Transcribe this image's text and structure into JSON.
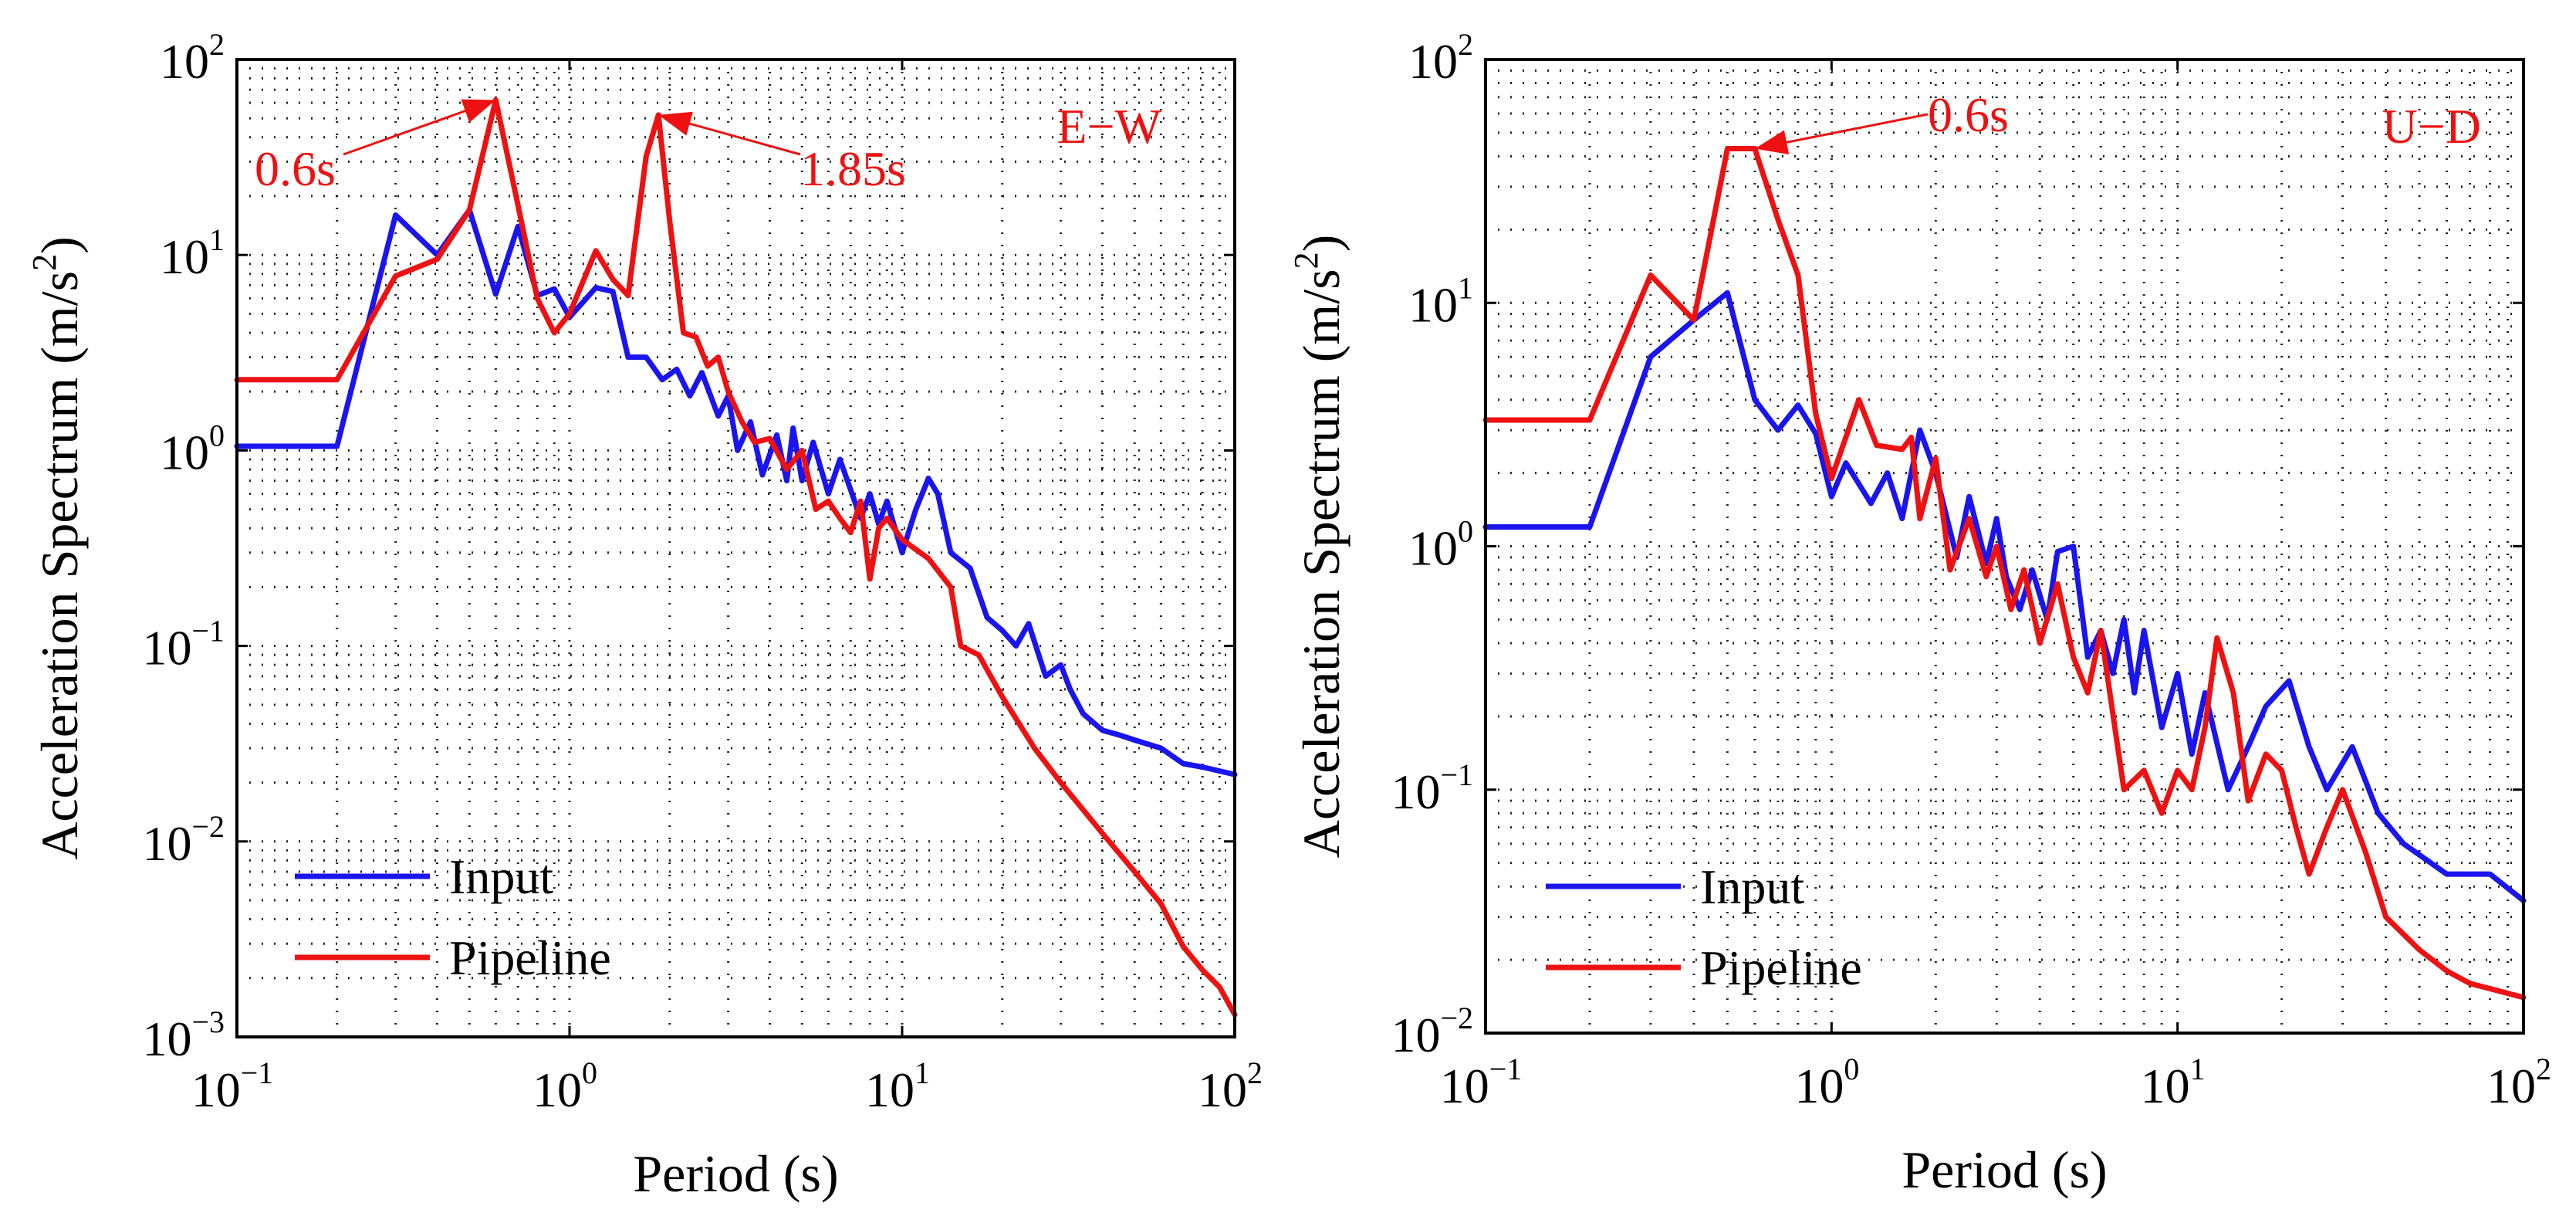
{
  "chart_data": [
    {
      "type": "line",
      "panel": "E-W",
      "xscale": "log",
      "yscale": "log",
      "xlabel": "Period (s)",
      "ylabel": "Acceleration Spectrum (m/s",
      "ylabel_sup": "2",
      "ylabel_close": ")",
      "xlim": [
        0.1,
        100
      ],
      "ylim": [
        0.001,
        100
      ],
      "x_tick_base": "10",
      "x_tick_exponents": [
        "−1",
        "0",
        "1",
        "2"
      ],
      "y_tick_base": "10",
      "y_tick_exponents": [
        "−3",
        "−2",
        "−1",
        "0",
        "1",
        "2"
      ],
      "grid": true,
      "panel_label": "E−W",
      "panel_label_color": "#ee1111",
      "legend_position": "bottom-left",
      "annotations": [
        {
          "text": "0.6s",
          "x": 0.6,
          "y": 62,
          "side": "left"
        },
        {
          "text": "1.85s",
          "x": 1.85,
          "y": 52,
          "side": "right"
        }
      ],
      "series": [
        {
          "name": "Input",
          "color": "#1a14ee",
          "points": [
            [
              0.1,
              1.05
            ],
            [
              0.2,
              1.05
            ],
            [
              0.3,
              16
            ],
            [
              0.4,
              10
            ],
            [
              0.5,
              17
            ],
            [
              0.6,
              6.3
            ],
            [
              0.7,
              14
            ],
            [
              0.8,
              6.2
            ],
            [
              0.9,
              6.7
            ],
            [
              1.0,
              4.8
            ],
            [
              1.2,
              6.8
            ],
            [
              1.35,
              6.5
            ],
            [
              1.5,
              3.0
            ],
            [
              1.7,
              3.0
            ],
            [
              1.9,
              2.3
            ],
            [
              2.1,
              2.6
            ],
            [
              2.3,
              1.9
            ],
            [
              2.5,
              2.5
            ],
            [
              2.8,
              1.5
            ],
            [
              3.0,
              1.9
            ],
            [
              3.2,
              1.0
            ],
            [
              3.5,
              1.4
            ],
            [
              3.8,
              0.75
            ],
            [
              4.2,
              1.2
            ],
            [
              4.5,
              0.7
            ],
            [
              4.7,
              1.3
            ],
            [
              5.0,
              0.7
            ],
            [
              5.4,
              1.1
            ],
            [
              6.0,
              0.6
            ],
            [
              6.5,
              0.9
            ],
            [
              7.5,
              0.45
            ],
            [
              8.0,
              0.6
            ],
            [
              8.5,
              0.42
            ],
            [
              9.0,
              0.55
            ],
            [
              10.0,
              0.3
            ],
            [
              11.0,
              0.5
            ],
            [
              12.0,
              0.72
            ],
            [
              12.8,
              0.6
            ],
            [
              14.0,
              0.3
            ],
            [
              16.0,
              0.25
            ],
            [
              18.0,
              0.14
            ],
            [
              20.0,
              0.12
            ],
            [
              22.0,
              0.1
            ],
            [
              24.0,
              0.13
            ],
            [
              27.0,
              0.07
            ],
            [
              30.0,
              0.08
            ],
            [
              32.0,
              0.06
            ],
            [
              35.0,
              0.045
            ],
            [
              40.0,
              0.037
            ],
            [
              45.0,
              0.035
            ],
            [
              50.0,
              0.033
            ],
            [
              60.0,
              0.03
            ],
            [
              70.0,
              0.025
            ],
            [
              80.0,
              0.024
            ],
            [
              100.0,
              0.022
            ]
          ]
        },
        {
          "name": "Pipeline",
          "color": "#ee1111",
          "points": [
            [
              0.1,
              2.3
            ],
            [
              0.2,
              2.3
            ],
            [
              0.3,
              7.8
            ],
            [
              0.4,
              9.5
            ],
            [
              0.5,
              17
            ],
            [
              0.6,
              62
            ],
            [
              0.7,
              18
            ],
            [
              0.8,
              6.0
            ],
            [
              0.9,
              4.0
            ],
            [
              1.0,
              5.0
            ],
            [
              1.2,
              10.5
            ],
            [
              1.35,
              7.5
            ],
            [
              1.5,
              6.2
            ],
            [
              1.7,
              32
            ],
            [
              1.85,
              52
            ],
            [
              2.0,
              15
            ],
            [
              2.2,
              4.0
            ],
            [
              2.4,
              3.8
            ],
            [
              2.6,
              2.7
            ],
            [
              2.8,
              3.0
            ],
            [
              3.0,
              2.0
            ],
            [
              3.3,
              1.4
            ],
            [
              3.6,
              1.1
            ],
            [
              4.0,
              1.15
            ],
            [
              4.5,
              0.8
            ],
            [
              5.0,
              1.0
            ],
            [
              5.5,
              0.5
            ],
            [
              6.0,
              0.55
            ],
            [
              6.5,
              0.45
            ],
            [
              7.0,
              0.38
            ],
            [
              7.5,
              0.55
            ],
            [
              8.0,
              0.22
            ],
            [
              8.5,
              0.4
            ],
            [
              9.0,
              0.45
            ],
            [
              10.0,
              0.35
            ],
            [
              12.0,
              0.28
            ],
            [
              14.0,
              0.2
            ],
            [
              15.0,
              0.1
            ],
            [
              17.0,
              0.09
            ],
            [
              20.0,
              0.055
            ],
            [
              25.0,
              0.03
            ],
            [
              30.0,
              0.02
            ],
            [
              40.0,
              0.011
            ],
            [
              50.0,
              0.007
            ],
            [
              60.0,
              0.0048
            ],
            [
              70.0,
              0.0029
            ],
            [
              80.0,
              0.0022
            ],
            [
              90.0,
              0.0018
            ],
            [
              100.0,
              0.0013
            ]
          ]
        }
      ]
    },
    {
      "type": "line",
      "panel": "U-D",
      "xscale": "log",
      "yscale": "log",
      "xlabel": "Period (s)",
      "ylabel": "Acceleration Spectrum (m/s",
      "ylabel_sup": "2",
      "ylabel_close": ")",
      "xlim": [
        0.1,
        100
      ],
      "ylim": [
        0.01,
        100
      ],
      "x_tick_base": "10",
      "x_tick_exponents": [
        "−1",
        "0",
        "1",
        "2"
      ],
      "y_tick_base": "10",
      "y_tick_exponents": [
        "−2",
        "−1",
        "0",
        "1",
        "2"
      ],
      "grid": true,
      "panel_label": "U−D",
      "panel_label_color": "#ee1111",
      "legend_position": "bottom-left",
      "annotations": [
        {
          "text": "0.6s",
          "x": 0.6,
          "y": 43,
          "side": "right"
        }
      ],
      "series": [
        {
          "name": "Input",
          "color": "#1a14ee",
          "points": [
            [
              0.1,
              1.2
            ],
            [
              0.2,
              1.2
            ],
            [
              0.3,
              6.0
            ],
            [
              0.4,
              8.5
            ],
            [
              0.5,
              11
            ],
            [
              0.6,
              4.0
            ],
            [
              0.7,
              3.0
            ],
            [
              0.8,
              3.8
            ],
            [
              0.9,
              2.9
            ],
            [
              1.0,
              1.6
            ],
            [
              1.1,
              2.2
            ],
            [
              1.3,
              1.5
            ],
            [
              1.45,
              2.0
            ],
            [
              1.6,
              1.3
            ],
            [
              1.8,
              3.0
            ],
            [
              2.0,
              2.0
            ],
            [
              2.3,
              0.9
            ],
            [
              2.5,
              1.6
            ],
            [
              2.8,
              0.85
            ],
            [
              3.0,
              1.3
            ],
            [
              3.2,
              0.75
            ],
            [
              3.5,
              0.55
            ],
            [
              3.8,
              0.8
            ],
            [
              4.2,
              0.5
            ],
            [
              4.5,
              0.95
            ],
            [
              5.0,
              1.0
            ],
            [
              5.5,
              0.35
            ],
            [
              6.0,
              0.45
            ],
            [
              6.5,
              0.3
            ],
            [
              7.0,
              0.5
            ],
            [
              7.5,
              0.25
            ],
            [
              8.0,
              0.45
            ],
            [
              9.0,
              0.18
            ],
            [
              10.0,
              0.3
            ],
            [
              11.0,
              0.14
            ],
            [
              12.0,
              0.25
            ],
            [
              14.0,
              0.1
            ],
            [
              16.0,
              0.15
            ],
            [
              18.0,
              0.22
            ],
            [
              21.0,
              0.28
            ],
            [
              24.0,
              0.15
            ],
            [
              27.0,
              0.1
            ],
            [
              32.0,
              0.15
            ],
            [
              38.0,
              0.08
            ],
            [
              45.0,
              0.06
            ],
            [
              60.0,
              0.045
            ],
            [
              70.0,
              0.045
            ],
            [
              80.0,
              0.045
            ],
            [
              100.0,
              0.035
            ]
          ]
        },
        {
          "name": "Pipeline",
          "color": "#ee1111",
          "points": [
            [
              0.1,
              3.3
            ],
            [
              0.2,
              3.3
            ],
            [
              0.3,
              13
            ],
            [
              0.4,
              8.5
            ],
            [
              0.5,
              43
            ],
            [
              0.6,
              43
            ],
            [
              0.7,
              22
            ],
            [
              0.8,
              13
            ],
            [
              0.9,
              3.5
            ],
            [
              1.0,
              1.9
            ],
            [
              1.2,
              4.0
            ],
            [
              1.35,
              2.6
            ],
            [
              1.6,
              2.5
            ],
            [
              1.7,
              2.8
            ],
            [
              1.8,
              1.3
            ],
            [
              2.0,
              2.3
            ],
            [
              2.2,
              0.8
            ],
            [
              2.5,
              1.3
            ],
            [
              2.8,
              0.75
            ],
            [
              3.0,
              1.0
            ],
            [
              3.3,
              0.55
            ],
            [
              3.6,
              0.8
            ],
            [
              4.0,
              0.4
            ],
            [
              4.5,
              0.7
            ],
            [
              5.0,
              0.35
            ],
            [
              5.5,
              0.25
            ],
            [
              6.0,
              0.45
            ],
            [
              7.0,
              0.1
            ],
            [
              8.0,
              0.12
            ],
            [
              9.0,
              0.08
            ],
            [
              10.0,
              0.12
            ],
            [
              11.0,
              0.1
            ],
            [
              12.0,
              0.18
            ],
            [
              13.0,
              0.42
            ],
            [
              14.5,
              0.25
            ],
            [
              16.0,
              0.09
            ],
            [
              18.0,
              0.14
            ],
            [
              20.0,
              0.12
            ],
            [
              22.0,
              0.07
            ],
            [
              24.0,
              0.045
            ],
            [
              27.0,
              0.07
            ],
            [
              30.0,
              0.1
            ],
            [
              35.0,
              0.055
            ],
            [
              40.0,
              0.03
            ],
            [
              50.0,
              0.022
            ],
            [
              60.0,
              0.018
            ],
            [
              70.0,
              0.016
            ],
            [
              100.0,
              0.014
            ]
          ]
        }
      ]
    }
  ]
}
